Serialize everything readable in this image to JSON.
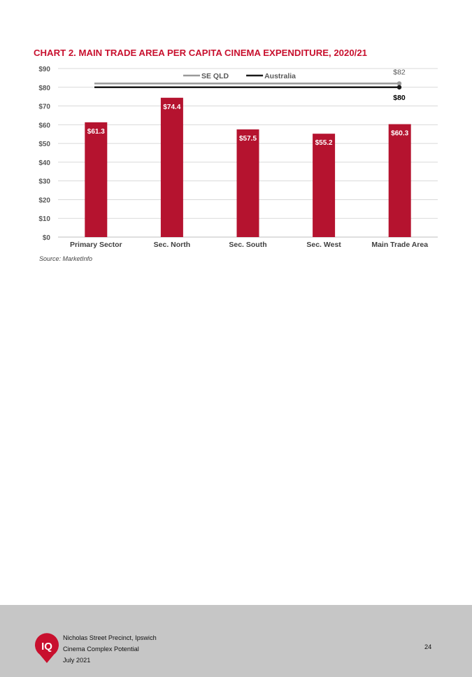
{
  "document": {
    "chart_title": "CHART 2. MAIN TRADE AREA PER CAPITA CINEMA EXPENDITURE, 2020/21",
    "source": "Source: MarketInfo"
  },
  "chart_data": {
    "type": "bar",
    "title": "CHART 2. MAIN TRADE AREA PER CAPITA CINEMA EXPENDITURE, 2020/21",
    "categories": [
      "Primary Sector",
      "Sec. North",
      "Sec. South",
      "Sec. West",
      "Main Trade Area"
    ],
    "values": [
      61.3,
      74.4,
      57.5,
      55.2,
      60.3
    ],
    "value_labels": [
      "$61.3",
      "$74.4",
      "$57.5",
      "$55.2",
      "$60.3"
    ],
    "ylim": [
      0,
      90
    ],
    "yticks": [
      0,
      10,
      20,
      30,
      40,
      50,
      60,
      70,
      80,
      90
    ],
    "ytick_labels": [
      "$0",
      "$10",
      "$20",
      "$30",
      "$40",
      "$50",
      "$60",
      "$70",
      "$80",
      "$90"
    ],
    "grid": true,
    "bar_color": "#b5132f",
    "reference_lines": [
      {
        "name": "SE QLD",
        "value": 82,
        "label": "$82",
        "color": "#9a9a9a"
      },
      {
        "name": "Australia",
        "value": 80,
        "label": "$80",
        "color": "#1a1a1a"
      }
    ],
    "legend_position": "top"
  },
  "footer": {
    "logo_text": "IQ",
    "logo_color": "#c8102e",
    "line1": "Nicholas Street Precinct, Ipswich",
    "line2": "Cinema Complex Potential",
    "line3": "July 2021",
    "page_number": "24"
  }
}
